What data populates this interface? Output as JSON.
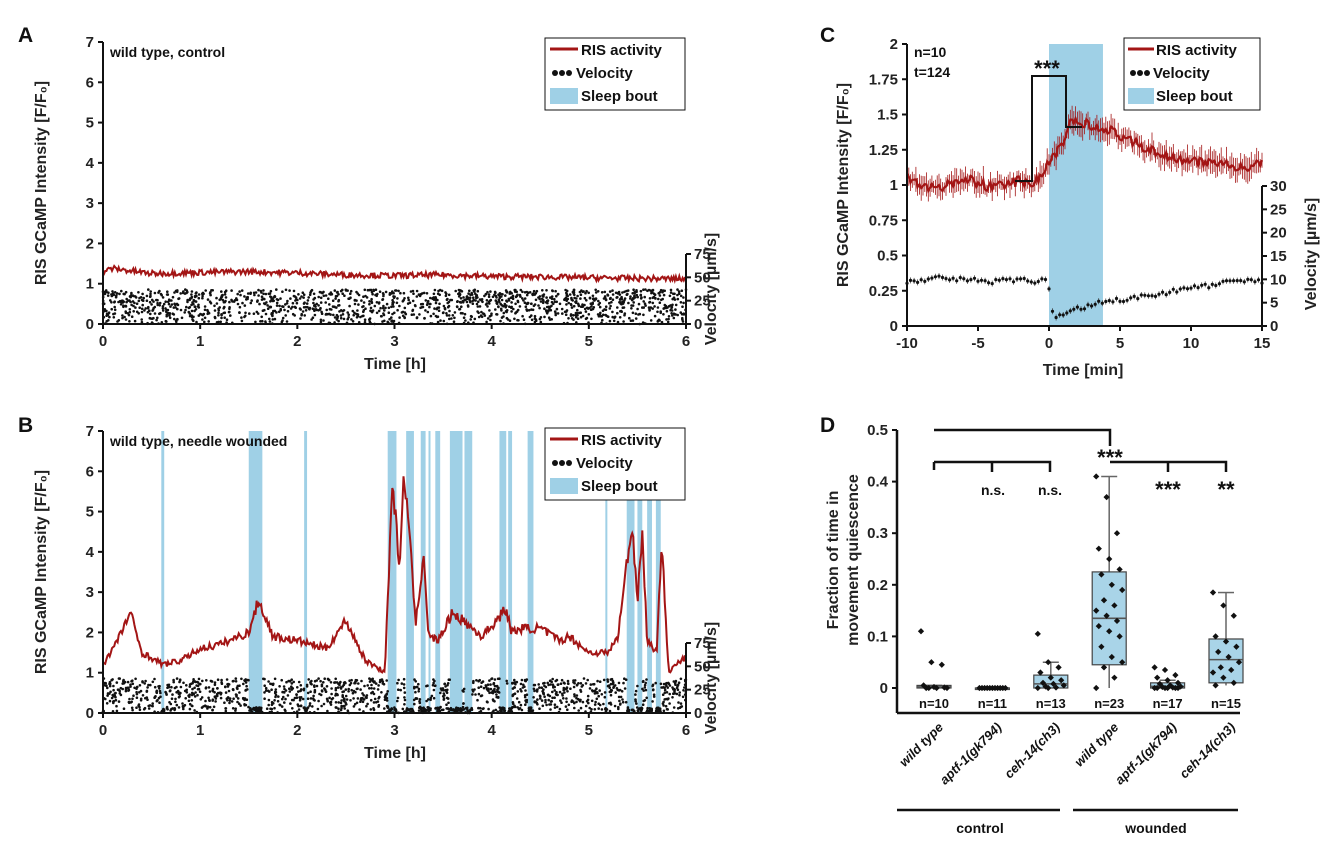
{
  "colors": {
    "ris": "#a31515",
    "velocity": "#111111",
    "sleep": "#9fd0e6",
    "box": "#a9d4e8"
  },
  "legend": {
    "ris": "RIS activity",
    "velocity": "Velocity",
    "sleep": "Sleep bout"
  },
  "chart_data": [
    {
      "panel": "A",
      "type": "line",
      "annotation": "wild type, control",
      "xlabel": "Time [h]",
      "ylabel": "RIS GCaMP Intensity [F/F₀]",
      "y2label": "Velocity [µm/s]",
      "xlim": [
        0,
        6
      ],
      "ylim": [
        0,
        7
      ],
      "y2lim": [
        0,
        75
      ],
      "xticks": [
        "0",
        "1",
        "2",
        "3",
        "4",
        "5",
        "6"
      ],
      "yticks": [
        "0",
        "1",
        "2",
        "3",
        "4",
        "5",
        "6",
        "7"
      ],
      "y2ticks": [
        "0",
        "25",
        "50",
        "75"
      ],
      "ris_activity": {
        "x": [
          0,
          0.1,
          0.5,
          1.0,
          1.5,
          2.0,
          2.5,
          3.0,
          3.5,
          4.0,
          4.5,
          5.0,
          5.5,
          6.0
        ],
        "y": [
          1.3,
          1.38,
          1.25,
          1.28,
          1.3,
          1.27,
          1.22,
          1.2,
          1.22,
          1.18,
          1.17,
          1.15,
          1.13,
          1.12
        ]
      },
      "velocity_range": [
        0,
        37
      ],
      "sleep_bouts": []
    },
    {
      "panel": "B",
      "type": "line",
      "annotation": "wild type, needle wounded",
      "xlabel": "Time [h]",
      "ylabel": "RIS GCaMP Intensity [F/F₀]",
      "y2label": "Velocity [µm/s]",
      "xlim": [
        0,
        6
      ],
      "ylim": [
        0,
        7
      ],
      "y2lim": [
        0,
        75
      ],
      "xticks": [
        "0",
        "1",
        "2",
        "3",
        "4",
        "5",
        "6"
      ],
      "yticks": [
        "0",
        "1",
        "2",
        "3",
        "4",
        "5",
        "6",
        "7"
      ],
      "y2ticks": [
        "0",
        "25",
        "50",
        "75"
      ],
      "ris_activity": {
        "x": [
          0,
          0.15,
          0.28,
          0.4,
          0.62,
          0.8,
          1.0,
          1.2,
          1.5,
          1.6,
          1.75,
          2.0,
          2.3,
          2.5,
          2.7,
          2.85,
          2.9,
          2.98,
          3.05,
          3.1,
          3.15,
          3.22,
          3.3,
          3.35,
          3.45,
          3.6,
          3.75,
          3.9,
          4.05,
          4.15,
          4.2,
          4.3,
          4.5,
          4.7,
          4.8,
          5.0,
          5.2,
          5.3,
          5.4,
          5.45,
          5.5,
          5.55,
          5.6,
          5.7,
          5.75,
          5.82,
          5.9,
          6.0
        ],
        "y": [
          1.2,
          1.8,
          2.5,
          1.5,
          1.2,
          1.3,
          1.6,
          1.7,
          2.0,
          2.8,
          1.9,
          1.8,
          1.6,
          2.3,
          1.3,
          1.1,
          1.0,
          5.8,
          3.6,
          6.0,
          4.5,
          2.2,
          4.0,
          1.9,
          1.8,
          2.5,
          2.2,
          1.9,
          2.3,
          2.6,
          2.0,
          2.1,
          2.1,
          1.8,
          1.9,
          1.5,
          1.5,
          1.9,
          3.9,
          4.6,
          2.8,
          4.5,
          1.8,
          1.5,
          4.4,
          1.0,
          1.2,
          1.4
        ]
      },
      "velocity_range": [
        0,
        37
      ],
      "sleep_bouts": [
        [
          0.6,
          0.63
        ],
        [
          1.5,
          1.64
        ],
        [
          2.07,
          2.1
        ],
        [
          2.93,
          3.02
        ],
        [
          3.12,
          3.2
        ],
        [
          3.27,
          3.32
        ],
        [
          3.35,
          3.37
        ],
        [
          3.42,
          3.47
        ],
        [
          3.57,
          3.7
        ],
        [
          3.72,
          3.8
        ],
        [
          4.08,
          4.15
        ],
        [
          4.17,
          4.21
        ],
        [
          4.37,
          4.43
        ],
        [
          5.17,
          5.19
        ],
        [
          5.39,
          5.47
        ],
        [
          5.5,
          5.55
        ],
        [
          5.6,
          5.65
        ],
        [
          5.69,
          5.74
        ]
      ]
    },
    {
      "panel": "C",
      "type": "line",
      "annotation": [
        "n=10",
        "t=124"
      ],
      "xlabel": "Time [min]",
      "ylabel": "RIS GCaMP Intensity [F/F₀]",
      "y2label": "Velocity [µm/s]",
      "xlim": [
        -10,
        15
      ],
      "ylim": [
        0,
        2
      ],
      "y2lim": [
        0,
        30
      ],
      "xticks": [
        "-10",
        "-5",
        "0",
        "5",
        "10",
        "15"
      ],
      "yticks": [
        "0",
        "0.25",
        "0.5",
        "0.75",
        "1",
        "1.25",
        "1.5",
        "1.75",
        "2"
      ],
      "y2ticks": [
        "0",
        "5",
        "10",
        "15",
        "20",
        "25",
        "30"
      ],
      "sleep_bout": [
        0,
        3.8
      ],
      "significance": "***",
      "ris_activity": {
        "x": [
          -10,
          -8,
          -6,
          -4,
          -2,
          -1,
          0,
          1,
          1.5,
          2,
          3,
          4,
          5,
          6,
          7,
          8,
          10,
          12,
          14,
          15
        ],
        "y": [
          1.05,
          0.97,
          1.05,
          0.98,
          1.03,
          1.02,
          1.15,
          1.3,
          1.45,
          1.46,
          1.42,
          1.4,
          1.35,
          1.3,
          1.26,
          1.2,
          1.18,
          1.15,
          1.12,
          1.15
        ]
      },
      "velocity": {
        "x": [
          -10,
          -8,
          -6,
          -4,
          -2,
          -1,
          -0.1,
          0.2,
          0.5,
          1,
          2,
          3,
          4,
          5,
          7,
          9,
          11,
          13,
          15
        ],
        "y": [
          9.2,
          10.5,
          10.0,
          9.5,
          10.0,
          9.0,
          10.2,
          3.5,
          2.0,
          2.5,
          3.8,
          4.5,
          5.2,
          5.6,
          6.5,
          7.5,
          8.5,
          9.5,
          9.5
        ]
      }
    },
    {
      "panel": "D",
      "type": "box",
      "ylabel": "Fraction of time in movement quiescence",
      "ylim": [
        0,
        0.5
      ],
      "yticks": [
        "0",
        "0.1",
        "0.2",
        "0.3",
        "0.4",
        "0.5"
      ],
      "categories": [
        "wild type",
        "aptf-1(gk794)",
        "ceh-14(ch3)",
        "wild type",
        "aptf-1(gk794)",
        "ceh-14(ch3)"
      ],
      "groups": [
        "control",
        "wounded"
      ],
      "n": [
        "n=10",
        "n=11",
        "n=13",
        "n=23",
        "n=17",
        "n=15"
      ],
      "boxes": [
        {
          "min": 0,
          "q1": 0,
          "median": 0.002,
          "q3": 0.005,
          "max": 0.005,
          "points": [
            0.11,
            0.05,
            0.045,
            0.005,
            0.002,
            0.001,
            0,
            0,
            0,
            0
          ]
        },
        {
          "min": 0,
          "q1": 0,
          "median": 0,
          "q3": 0,
          "max": 0,
          "points": [
            0,
            0,
            0,
            0,
            0,
            0,
            0,
            0,
            0,
            0,
            0
          ]
        },
        {
          "min": 0,
          "q1": 0,
          "median": 0.008,
          "q3": 0.025,
          "max": 0.05,
          "points": [
            0.105,
            0.05,
            0.04,
            0.03,
            0.02,
            0.015,
            0.01,
            0.008,
            0.005,
            0.003,
            0.001,
            0,
            0
          ]
        },
        {
          "min": 0,
          "q1": 0.045,
          "median": 0.135,
          "q3": 0.225,
          "max": 0.41,
          "points": [
            0.41,
            0.37,
            0.3,
            0.27,
            0.25,
            0.23,
            0.22,
            0.2,
            0.19,
            0.17,
            0.16,
            0.15,
            0.14,
            0.13,
            0.12,
            0.11,
            0.1,
            0.08,
            0.06,
            0.05,
            0.04,
            0.02,
            0
          ]
        },
        {
          "min": 0,
          "q1": 0,
          "median": 0.003,
          "q3": 0.01,
          "max": 0.015,
          "points": [
            0.04,
            0.035,
            0.025,
            0.02,
            0.015,
            0.01,
            0.008,
            0.005,
            0.003,
            0.002,
            0.001,
            0,
            0,
            0,
            0,
            0,
            0
          ]
        },
        {
          "min": 0.005,
          "q1": 0.01,
          "median": 0.055,
          "q3": 0.095,
          "max": 0.185,
          "points": [
            0.185,
            0.16,
            0.14,
            0.1,
            0.09,
            0.08,
            0.07,
            0.06,
            0.05,
            0.04,
            0.035,
            0.03,
            0.02,
            0.01,
            0.005
          ]
        }
      ],
      "significance": [
        {
          "label": "***",
          "compare": "wt-control vs wt-wounded"
        },
        {
          "label": "n.s.",
          "compare": "wt-control vs aptf-1 control"
        },
        {
          "label": "n.s.",
          "compare": "wt-control vs ceh-14 control"
        },
        {
          "label": "***",
          "compare": "wt-wounded vs aptf-1 wounded"
        },
        {
          "label": "**",
          "compare": "wt-wounded vs ceh-14 wounded"
        }
      ]
    }
  ]
}
